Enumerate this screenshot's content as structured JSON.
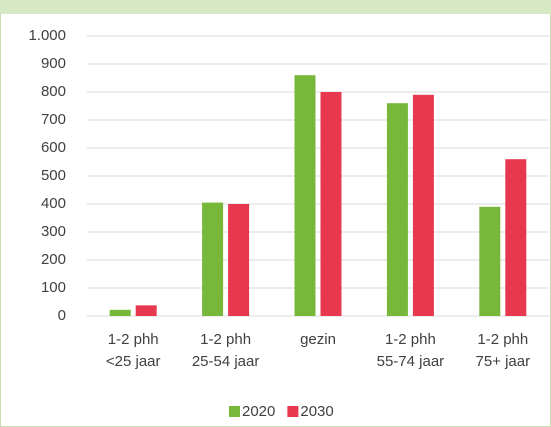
{
  "chart_data": {
    "type": "bar",
    "categories": [
      [
        "1-2 phh",
        "<25 jaar"
      ],
      [
        "1-2 phh",
        "25-54 jaar"
      ],
      [
        "gezin"
      ],
      [
        "1-2 phh",
        "55-74 jaar"
      ],
      [
        "1-2 phh",
        "75+ jaar"
      ]
    ],
    "series": [
      {
        "name": "2020",
        "color": "#77b83a",
        "values": [
          22,
          405,
          860,
          760,
          390
        ]
      },
      {
        "name": "2030",
        "color": "#e8384f",
        "values": [
          38,
          400,
          800,
          790,
          560
        ]
      }
    ],
    "ylim": [
      0,
      1000
    ],
    "yticks": [
      0,
      100,
      200,
      300,
      400,
      500,
      600,
      700,
      800,
      900,
      {
        "value": 1000,
        "label": "1.000"
      }
    ],
    "grid": true,
    "legend": "bottom"
  }
}
